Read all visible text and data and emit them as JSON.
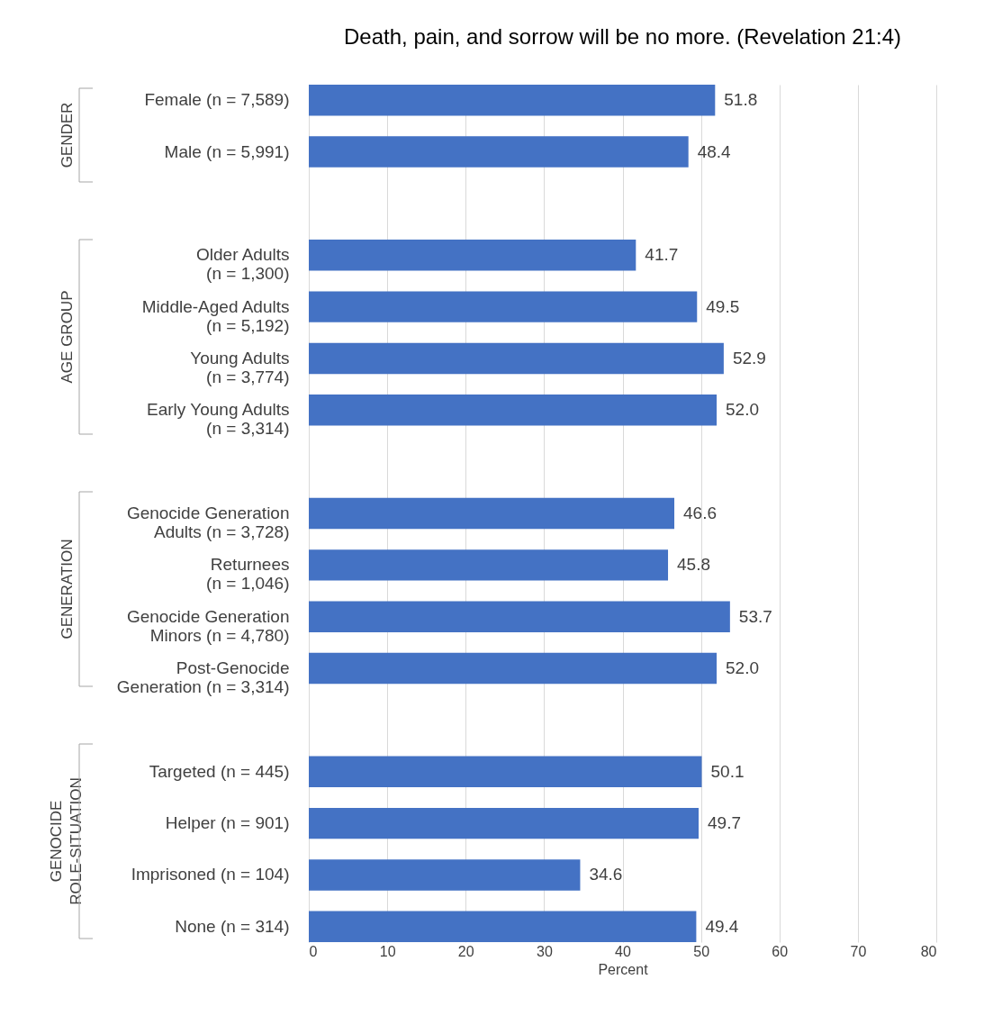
{
  "chart_data": {
    "type": "bar",
    "orientation": "horizontal",
    "title": "Death, pain, and sorrow will be no more. (Revelation 21:4)",
    "xlabel": "Percent",
    "categories": [
      "Female (n = 7,589)",
      "Male (n = 5,991)",
      null,
      "Older Adults\n(n = 1,300)",
      "Middle-Aged Adults\n(n = 5,192)",
      "Young Adults\n(n = 3,774)",
      "Early Young Adults\n(n = 3,314)",
      null,
      "Genocide Generation\nAdults (n = 3,728)",
      "Returnees\n(n = 1,046)",
      "Genocide Generation\nMinors (n = 4,780)",
      "Post-Genocide\nGeneration (n = 3,314)",
      null,
      "Targeted (n = 445)",
      "Helper (n = 901)",
      "Imprisoned (n = 104)",
      "None (n = 314)"
    ],
    "values": [
      51.8,
      48.4,
      null,
      41.7,
      49.5,
      52.9,
      52.0,
      null,
      46.6,
      45.8,
      53.7,
      52.0,
      null,
      50.1,
      49.7,
      34.6,
      49.4
    ],
    "color": "#4472c4",
    "value_labels": [
      "51.8",
      "48.4",
      null,
      "41.7",
      "49.5",
      "52.9",
      "52.0",
      null,
      "46.6",
      "45.8",
      "53.7",
      "52.0",
      null,
      "50.1",
      "49.7",
      "34.6",
      "49.4"
    ],
    "xlim": [
      0,
      80
    ],
    "xticks": [
      0,
      10,
      20,
      30,
      40,
      50,
      60,
      70,
      80
    ],
    "grid": "x",
    "annotations": [
      "GENDER",
      "AGE GROUP",
      "GENERATION",
      "GENOCIDE\nROLE-SITUATION"
    ]
  }
}
